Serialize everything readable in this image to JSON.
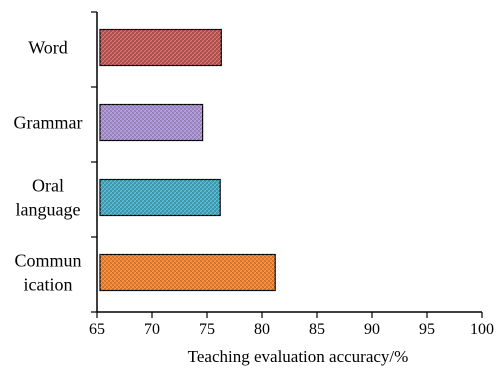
{
  "chart_data": {
    "type": "bar",
    "orientation": "horizontal",
    "title": "",
    "xlabel": "Teaching evaluation accuracy/%",
    "ylabel": "",
    "xlim": [
      65,
      100
    ],
    "xticks": [
      65,
      70,
      75,
      80,
      85,
      90,
      95,
      100
    ],
    "grid": false,
    "legend": "none",
    "categories": [
      [
        "Word"
      ],
      [
        "Grammar"
      ],
      [
        "Oral",
        "language"
      ],
      [
        "Commun",
        "ication"
      ]
    ],
    "values": [
      76.3,
      74.6,
      76.2,
      81.2
    ],
    "colors": [
      "#c0504d",
      "#a58cd0",
      "#3aa6c0",
      "#f07c22"
    ]
  }
}
